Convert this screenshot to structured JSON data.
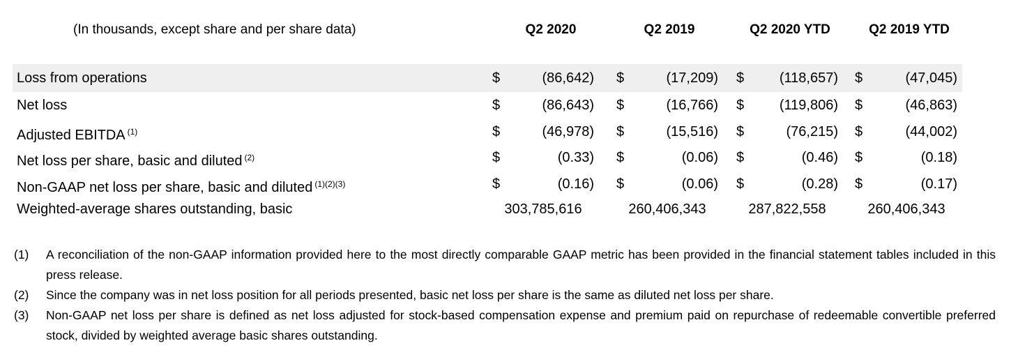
{
  "header": {
    "caption": "(In thousands, except share and per share data)",
    "columns": [
      "Q2 2020",
      "Q2 2019",
      "Q2 2020 YTD",
      "Q2 2019 YTD"
    ]
  },
  "rows": [
    {
      "label": "Loss from operations",
      "cells": [
        {
          "currency": "$",
          "value": "(86,642)"
        },
        {
          "currency": "$",
          "value": "(17,209)"
        },
        {
          "currency": "$",
          "value": "(118,657)"
        },
        {
          "currency": "$",
          "value": "(47,045)"
        }
      ]
    },
    {
      "label": "Net loss",
      "cells": [
        {
          "currency": "$",
          "value": "(86,643)"
        },
        {
          "currency": "$",
          "value": "(16,766)"
        },
        {
          "currency": "$",
          "value": "(119,806)"
        },
        {
          "currency": "$",
          "value": "(46,863)"
        }
      ]
    },
    {
      "label": "Adjusted EBITDA",
      "note": "(1)",
      "cells": [
        {
          "currency": "$",
          "value": "(46,978)"
        },
        {
          "currency": "$",
          "value": "(15,516)"
        },
        {
          "currency": "$",
          "value": "(76,215)"
        },
        {
          "currency": "$",
          "value": "(44,002)"
        }
      ]
    },
    {
      "label": "Net loss per share, basic and diluted",
      "note": "(2)",
      "cells": [
        {
          "currency": "$",
          "value": "(0.33)"
        },
        {
          "currency": "$",
          "value": "(0.06)"
        },
        {
          "currency": "$",
          "value": "(0.46)"
        },
        {
          "currency": "$",
          "value": "(0.18)"
        }
      ]
    },
    {
      "label": "Non-GAAP net loss per share, basic and diluted",
      "note": "(1)(2)(3)",
      "cells": [
        {
          "currency": "$",
          "value": "(0.16)"
        },
        {
          "currency": "$",
          "value": "(0.06)"
        },
        {
          "currency": "$",
          "value": "(0.28)"
        },
        {
          "currency": "$",
          "value": "(0.17)"
        }
      ]
    },
    {
      "label": "Weighted-average shares outstanding, basic",
      "cells": [
        {
          "value": "303,785,616"
        },
        {
          "value": "260,406,343"
        },
        {
          "value": "287,822,558"
        },
        {
          "value": "260,406,343"
        }
      ]
    }
  ],
  "footnotes": [
    {
      "marker": "(1)",
      "text": "A reconciliation of the non-GAAP information provided here to the most directly comparable GAAP metric has been provided in the financial statement tables included in this press release."
    },
    {
      "marker": "(2)",
      "text": "Since the company was in net loss position for all periods presented, basic net loss per share is the same as diluted net loss per share."
    },
    {
      "marker": "(3)",
      "text": "Non-GAAP net loss per share is defined as net loss adjusted for stock-based compensation expense and premium paid on repurchase of redeemable convertible preferred stock, divided by weighted average basic shares outstanding."
    }
  ]
}
